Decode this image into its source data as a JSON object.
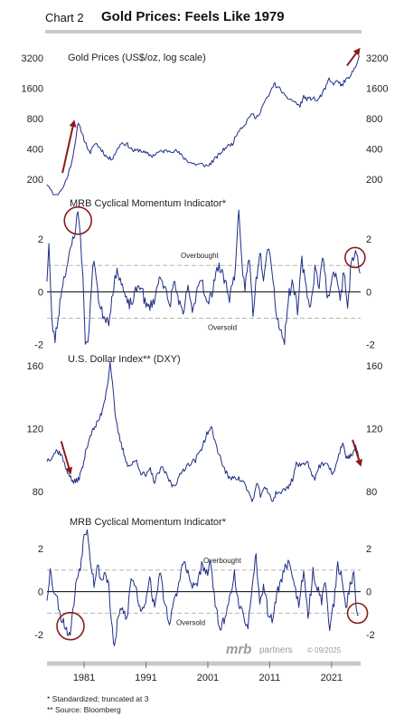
{
  "header": {
    "chart_number": "Chart 2",
    "title": "Gold Prices: Feels Like 1979"
  },
  "footnotes": {
    "line1": "*  Standardized; truncated at 3",
    "line2": "** Source: Bloomberg"
  },
  "branding": {
    "logo_text": "mrb",
    "partners_text": "partners",
    "copyright": "© 09/2025"
  },
  "colors": {
    "series": "#1f2f86",
    "annotation": "#8b1a1a",
    "reference_line": "#b5b5b5",
    "header_rule": "#c9c9c9"
  },
  "x_axis": {
    "range": [
      1975,
      2025.7
    ],
    "tick_labels": [
      "1981",
      "1991",
      "2001",
      "2011",
      "2021"
    ],
    "tick_values": [
      1981,
      1991,
      2001,
      2011,
      2021
    ]
  },
  "chart_data": [
    {
      "type": "line",
      "title": "Gold Prices (US$/oz, log scale)",
      "scale": "log",
      "ylim": [
        140,
        4300
      ],
      "y_ticks": [
        200,
        400,
        800,
        1600,
        3200
      ],
      "y_tick_labels": [
        "200",
        "400",
        "800",
        "1600",
        "3200"
      ],
      "annotations": [
        {
          "type": "arrow",
          "from": [
            1977.5,
            230
          ],
          "to": [
            1979.3,
            720
          ]
        },
        {
          "type": "arrow",
          "from": [
            2023.5,
            2700
          ],
          "to": [
            2025.3,
            3800
          ]
        }
      ],
      "series": [
        {
          "x": [
            1975,
            1975.5,
            1976,
            1976.5,
            1977,
            1977.5,
            1978,
            1978.5,
            1979,
            1979.4,
            1979.8,
            1980.05,
            1980.5,
            1981,
            1981.5,
            1982,
            1982.5,
            1983,
            1983.5,
            1984,
            1984.5,
            1985,
            1985.5,
            1986,
            1987,
            1988,
            1989,
            1990,
            1991,
            1992,
            1993,
            1994,
            1995,
            1996,
            1997,
            1998,
            1999,
            2000,
            2001,
            2002,
            2003,
            2004,
            2005,
            2006,
            2007,
            2008,
            2008.8,
            2009.5,
            2010,
            2010.5,
            2011,
            2011.7,
            2012,
            2012.5,
            2013,
            2013.5,
            2014,
            2015,
            2015.9,
            2016.5,
            2017,
            2018,
            2018.7,
            2019.5,
            2020,
            2020.6,
            2021,
            2021.5,
            2022,
            2022.8,
            2023,
            2023.5,
            2024,
            2024.5,
            2025,
            2025.5
          ],
          "values": [
            180,
            165,
            135,
            125,
            150,
            160,
            190,
            230,
            300,
            400,
            600,
            700,
            620,
            500,
            420,
            350,
            440,
            450,
            410,
            380,
            340,
            320,
            320,
            360,
            460,
            440,
            380,
            390,
            360,
            340,
            370,
            380,
            385,
            380,
            330,
            295,
            280,
            280,
            270,
            310,
            360,
            420,
            450,
            620,
            700,
            900,
            800,
            950,
            1120,
            1250,
            1400,
            1800,
            1700,
            1600,
            1500,
            1300,
            1280,
            1180,
            1060,
            1330,
            1250,
            1280,
            1200,
            1420,
            1600,
            1980,
            1800,
            1800,
            1900,
            1650,
            1900,
            1950,
            2050,
            2400,
            2800,
            3400
          ]
        }
      ]
    },
    {
      "type": "line",
      "title": "MRB Cyclical Momentum Indicator*",
      "ylim": [
        -2.25,
        3.1
      ],
      "y_ticks": [
        -2,
        0,
        2
      ],
      "y_tick_labels": [
        "-2",
        "0",
        "2"
      ],
      "reference_lines": [
        {
          "value": 1,
          "label": "Overbought"
        },
        {
          "value": -1,
          "label": "Oversold"
        }
      ],
      "annotations": [
        {
          "type": "circle",
          "center": [
            1980,
            2.7
          ]
        },
        {
          "type": "circle",
          "center": [
            2024.8,
            1.3
          ]
        }
      ],
      "series": [
        {
          "x": [
            1975,
            1975.3,
            1975.8,
            1976.3,
            1976.8,
            1977.4,
            1978,
            1978.5,
            1979,
            1979.5,
            1980,
            1980.4,
            1980.8,
            1981.2,
            1981.6,
            1982,
            1982.4,
            1982.8,
            1983.5,
            1984.2,
            1985,
            1985.8,
            1986.5,
            1987.2,
            1988,
            1988.8,
            1989.5,
            1990.2,
            1991,
            1991.8,
            1992.5,
            1993.3,
            1994,
            1994.8,
            1995.5,
            1996.3,
            1997,
            1997.8,
            1998.5,
            1999.3,
            2000,
            2000.8,
            2001.5,
            2002.3,
            2003,
            2003.8,
            2004.5,
            2005.3,
            2006,
            2006.5,
            2007,
            2007.7,
            2008.3,
            2008.8,
            2009.4,
            2010,
            2010.7,
            2011.4,
            2012,
            2012.7,
            2013.4,
            2014,
            2014.8,
            2015.5,
            2016.2,
            2016.9,
            2017.6,
            2018.3,
            2019,
            2019.7,
            2020.3,
            2021,
            2021.7,
            2022.4,
            2023,
            2023.6,
            2024.2,
            2024.7,
            2025.2,
            2025.6
          ],
          "values": [
            0.5,
            1.8,
            -1.2,
            -1.8,
            -1.0,
            0.2,
            0.8,
            1.2,
            1.8,
            2.3,
            3.0,
            2.2,
            0.5,
            -1.8,
            -2.1,
            -0.5,
            0.9,
            1.0,
            -0.6,
            -0.9,
            -1.1,
            0.3,
            0.8,
            0.2,
            -0.5,
            -0.4,
            0.1,
            0.3,
            -0.6,
            -0.5,
            -0.2,
            0.7,
            0.2,
            -0.6,
            0.4,
            -0.3,
            -1.0,
            0.3,
            -0.9,
            0.2,
            0.6,
            -0.5,
            -0.2,
            0.8,
            0.9,
            0.4,
            -0.2,
            0.6,
            2.9,
            1.0,
            0.2,
            1.3,
            -0.8,
            0.4,
            1.6,
            0.6,
            1.8,
            0.9,
            -0.7,
            -1.5,
            -1.8,
            -0.2,
            0.4,
            -0.8,
            1.2,
            0.1,
            -0.6,
            0.9,
            0.3,
            1.4,
            -0.4,
            0.5,
            0.8,
            -0.4,
            0.9,
            -0.6,
            1.1,
            1.5,
            1.3,
            0.7
          ]
        }
      ]
    },
    {
      "type": "line",
      "title": "U.S. Dollar Index** (DXY)",
      "ylim": [
        72,
        167
      ],
      "y_ticks": [
        80,
        120,
        160
      ],
      "y_tick_labels": [
        "80",
        "120",
        "160"
      ],
      "annotations": [
        {
          "type": "arrow",
          "from": [
            1977.3,
            112
          ],
          "to": [
            1978.7,
            93
          ]
        },
        {
          "type": "arrow",
          "from": [
            2024.4,
            113
          ],
          "to": [
            2025.6,
            98
          ]
        }
      ],
      "series": [
        {
          "x": [
            1975,
            1975.7,
            1976.5,
            1977.3,
            1978,
            1978.5,
            1979,
            1979.6,
            1980.2,
            1980.8,
            1981.4,
            1982,
            1982.6,
            1983.2,
            1983.8,
            1984.4,
            1984.9,
            1985.2,
            1985.6,
            1986,
            1986.5,
            1987,
            1987.6,
            1988.2,
            1988.9,
            1989.5,
            1990.2,
            1991,
            1991.7,
            1992.4,
            1993,
            1993.7,
            1994.4,
            1995.2,
            1996,
            1997,
            1998,
            1999,
            2000,
            2001,
            2001.6,
            2002.3,
            2003,
            2003.7,
            2004.5,
            2005.3,
            2006,
            2006.8,
            2007.5,
            2008.3,
            2008.9,
            2009.5,
            2010,
            2010.7,
            2011.4,
            2012,
            2013,
            2014,
            2014.7,
            2015.3,
            2016,
            2017,
            2017.7,
            2018.3,
            2019,
            2020,
            2020.7,
            2021.3,
            2022,
            2022.8,
            2023.2,
            2023.8,
            2024.4,
            2024.9,
            2025.2,
            2025.6
          ],
          "values": [
            100,
            102,
            106,
            104,
            95,
            92,
            87,
            86,
            89,
            96,
            108,
            116,
            120,
            124,
            130,
            140,
            152,
            162,
            150,
            128,
            118,
            110,
            102,
            96,
            98,
            100,
            92,
            90,
            94,
            86,
            92,
            95,
            90,
            84,
            86,
            94,
            98,
            100,
            108,
            118,
            120,
            110,
            102,
            94,
            88,
            90,
            88,
            86,
            80,
            74,
            85,
            78,
            82,
            80,
            74,
            79,
            80,
            83,
            88,
            98,
            96,
            100,
            92,
            89,
            96,
            98,
            94,
            92,
            100,
            112,
            103,
            102,
            104,
            108,
            104,
            98
          ]
        }
      ]
    },
    {
      "type": "line",
      "title": "MRB Cyclical Momentum Indicator*",
      "ylim": [
        -3.0,
        3.3
      ],
      "y_ticks": [
        -2,
        0,
        2
      ],
      "y_tick_labels": [
        "-2",
        "0",
        "2"
      ],
      "reference_lines": [
        {
          "value": 1,
          "label": "Overbought"
        },
        {
          "value": -1,
          "label": "Oversold"
        }
      ],
      "annotations": [
        {
          "type": "circle",
          "center": [
            1978.8,
            -1.6
          ]
        },
        {
          "type": "circle",
          "center": [
            2025.2,
            -1.0
          ]
        }
      ],
      "series": [
        {
          "x": [
            1975,
            1975.5,
            1976,
            1976.7,
            1977.3,
            1978,
            1978.6,
            1979.2,
            1979.8,
            1980.4,
            1981,
            1981.5,
            1982,
            1982.6,
            1983.2,
            1983.8,
            1984.4,
            1985,
            1985.4,
            1985.9,
            1986.5,
            1987.2,
            1987.9,
            1988.6,
            1989.3,
            1990,
            1990.8,
            1991.6,
            1992.4,
            1993.2,
            1994,
            1994.8,
            1995.5,
            1996.3,
            1997,
            1997.8,
            1998.5,
            1999.3,
            2000,
            2000.8,
            2001.5,
            2002.2,
            2003,
            2003.8,
            2004.5,
            2005.3,
            2006,
            2006.8,
            2007.5,
            2008.2,
            2008.8,
            2009.4,
            2010,
            2010.7,
            2011.4,
            2012,
            2012.8,
            2013.5,
            2014.3,
            2015,
            2015.7,
            2016.5,
            2017.2,
            2018,
            2018.7,
            2019.4,
            2020,
            2020.7,
            2021.4,
            2022,
            2022.7,
            2023.3,
            2024,
            2024.6,
            2025,
            2025.4
          ],
          "values": [
            -0.3,
            1.0,
            0.2,
            -0.4,
            -1.2,
            -1.6,
            -2.1,
            -0.9,
            0.6,
            1.2,
            2.6,
            3.0,
            1.6,
            0.4,
            1.2,
            0.5,
            0.9,
            0.3,
            -1.5,
            -2.6,
            -1.2,
            -0.8,
            -1.3,
            0.6,
            0.3,
            -0.8,
            -0.6,
            0.7,
            -0.9,
            1.0,
            -0.5,
            -1.4,
            -0.6,
            0.3,
            1.5,
            0.8,
            0.2,
            0.4,
            1.2,
            0.8,
            1.4,
            -0.8,
            -1.6,
            -1.3,
            -0.3,
            0.9,
            -0.8,
            -1.1,
            -1.6,
            0.1,
            1.7,
            -0.7,
            0.4,
            -0.9,
            -1.4,
            -0.3,
            0.5,
            1.1,
            1.4,
            0.2,
            -0.5,
            0.8,
            -1.2,
            0.9,
            0.2,
            -0.4,
            0.5,
            -1.7,
            -0.5,
            1.2,
            0.6,
            -0.8,
            0.4,
            0.8,
            -0.9,
            -1.1
          ]
        }
      ]
    }
  ]
}
